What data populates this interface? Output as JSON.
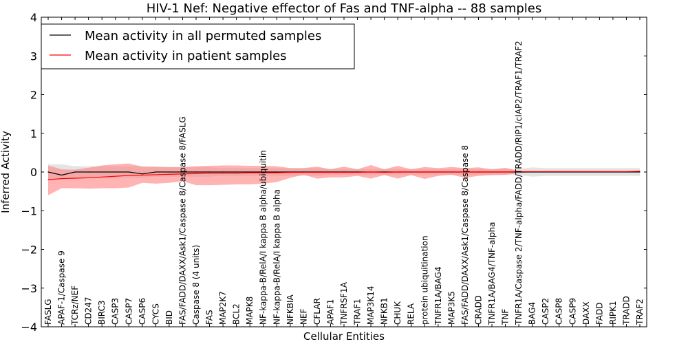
{
  "chart_data": {
    "type": "line",
    "title": "HIV-1 Nef: Negative effector of Fas and TNF-alpha -- 88 samples",
    "xlabel": "Cellular Entities",
    "ylabel": "Inferred Activity",
    "ylim": [
      -4,
      4
    ],
    "yticks": [
      -4,
      -3,
      -2,
      -1,
      0,
      1,
      2,
      3,
      4
    ],
    "ytick_labels": [
      "−4",
      "−3",
      "−2",
      "−1",
      "0",
      "1",
      "2",
      "3",
      "4"
    ],
    "legend_position": "top-left",
    "categories": [
      "FASLG",
      "APAF-1/Caspase 9",
      "TCRz/NEF",
      "CD247",
      "BIRC3",
      "CASP3",
      "CASP7",
      "CASP6",
      "CYCS",
      "BID",
      "FAS/FADD/DAXX/Ask1/Caspase 8/Caspase 8/FASLG",
      "Caspase 8 (4 units)",
      "FAS",
      "MAP2K7",
      "BCL2",
      "MAPK8",
      "NF-kappa-B/RelA/I kappa B alpha/ubiquitin",
      "NF-kappa-B/RelA/I kappa B alpha",
      "NFKBIA",
      "NEF",
      "CFLAR",
      "APAF1",
      "TNFRSF1A",
      "TRAF1",
      "MAP3K14",
      "NFKB1",
      "CHUK",
      "RELA",
      "protein ubiquitination",
      "TNFR1A/BAG4",
      "MAP3K5",
      "FAS/FADD/DAXX/Ask1/Caspase 8/Caspase 8",
      "CRADD",
      "TNFR1A/BAG4/TNF-alpha",
      "TNF",
      "TNFR1A/Caspase 2/TNF-alpha/FADD/TRADD/RIP1/cIAP2/TRAF1/TRAF2",
      "BAG4",
      "CASP2",
      "CASP8",
      "CASP9",
      "DAXX",
      "FADD",
      "RIPK1",
      "TRADD",
      "TRAF2"
    ],
    "series": [
      {
        "name": "Mean activity in all permuted samples",
        "color": "#000000",
        "values": [
          0.0,
          -0.08,
          0.0,
          0.0,
          0.0,
          0.0,
          0.0,
          -0.05,
          0.0,
          0.0,
          0.0,
          0.0,
          0.0,
          0.0,
          0.0,
          0.0,
          0.0,
          0.0,
          0.0,
          0.0,
          0.0,
          0.0,
          0.0,
          0.0,
          0.0,
          0.0,
          0.0,
          0.0,
          0.0,
          0.0,
          0.0,
          0.0,
          0.0,
          0.0,
          0.0,
          0.0,
          0.0,
          0.0,
          0.0,
          0.0,
          0.0,
          0.0,
          0.0,
          0.0,
          0.0
        ],
        "band_low": [
          -0.2,
          -0.2,
          -0.15,
          -0.15,
          -0.15,
          -0.15,
          -0.15,
          -0.15,
          -0.12,
          -0.12,
          -0.12,
          -0.12,
          -0.12,
          -0.1,
          -0.1,
          -0.1,
          -0.1,
          -0.1,
          -0.1,
          -0.1,
          -0.1,
          -0.08,
          -0.08,
          -0.08,
          -0.08,
          -0.08,
          -0.08,
          -0.08,
          -0.08,
          -0.08,
          -0.08,
          -0.08,
          -0.08,
          -0.08,
          -0.08,
          -0.08,
          -0.12,
          -0.1,
          -0.1,
          -0.1,
          -0.1,
          -0.1,
          -0.1,
          -0.1,
          -0.1
        ],
        "band_high": [
          0.2,
          0.2,
          0.15,
          0.15,
          0.15,
          0.15,
          0.15,
          0.15,
          0.12,
          0.12,
          0.12,
          0.12,
          0.12,
          0.1,
          0.1,
          0.1,
          0.1,
          0.1,
          0.1,
          0.1,
          0.1,
          0.08,
          0.08,
          0.08,
          0.08,
          0.08,
          0.08,
          0.08,
          0.08,
          0.08,
          0.08,
          0.08,
          0.08,
          0.08,
          0.08,
          0.08,
          0.12,
          0.1,
          0.1,
          0.1,
          0.1,
          0.1,
          0.1,
          0.1,
          0.1
        ]
      },
      {
        "name": "Mean activity in patient samples",
        "color": "#ff0000",
        "band_color": "#ff8080",
        "values": [
          -0.2,
          -0.17,
          -0.16,
          -0.15,
          -0.13,
          -0.11,
          -0.09,
          -0.08,
          -0.07,
          -0.06,
          -0.05,
          -0.04,
          -0.03,
          -0.03,
          -0.03,
          -0.02,
          -0.02,
          -0.02,
          -0.01,
          -0.01,
          -0.01,
          -0.01,
          -0.01,
          -0.01,
          0.0,
          -0.01,
          0.0,
          0.0,
          0.0,
          0.0,
          0.0,
          0.0,
          0.0,
          0.0,
          0.0,
          0.01,
          0.01,
          0.01,
          0.01,
          0.01,
          0.01,
          0.01,
          0.01,
          0.01,
          0.02
        ],
        "band_low": [
          -0.6,
          -0.42,
          -0.42,
          -0.43,
          -0.42,
          -0.42,
          -0.4,
          -0.28,
          -0.3,
          -0.28,
          -0.24,
          -0.34,
          -0.34,
          -0.33,
          -0.32,
          -0.32,
          -0.3,
          -0.26,
          -0.15,
          -0.07,
          -0.17,
          -0.14,
          -0.14,
          -0.1,
          -0.17,
          -0.08,
          -0.17,
          -0.08,
          -0.18,
          -0.1,
          -0.07,
          -0.15,
          -0.1,
          -0.08,
          -0.07,
          -0.03,
          0.0,
          0.0,
          0.0,
          0.0,
          0.0,
          0.0,
          0.0,
          0.0,
          0.0
        ],
        "band_high": [
          0.17,
          0.07,
          0.06,
          0.11,
          0.17,
          0.2,
          0.22,
          0.14,
          0.14,
          0.13,
          0.13,
          0.15,
          0.16,
          0.17,
          0.17,
          0.16,
          0.16,
          0.15,
          0.1,
          0.1,
          0.14,
          0.07,
          0.14,
          0.07,
          0.18,
          0.07,
          0.16,
          0.07,
          0.13,
          0.1,
          0.13,
          0.1,
          0.12,
          0.07,
          0.11,
          0.03,
          0.02,
          0.03,
          0.03,
          0.03,
          0.03,
          0.03,
          0.03,
          0.03,
          0.03
        ]
      }
    ]
  }
}
